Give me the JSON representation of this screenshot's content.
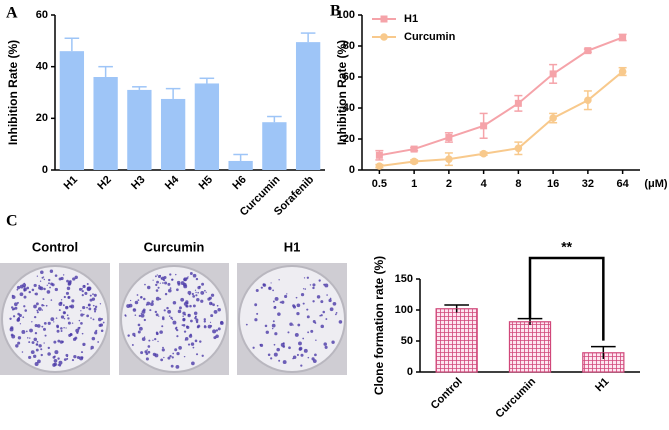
{
  "panel_labels": [
    "A",
    "B",
    "C"
  ],
  "photo_labels": [
    "Control",
    "Curcumin",
    "H1"
  ],
  "chart_data": [
    {
      "type": "bar",
      "y_label": "Inhibition Rate (%)",
      "categories": [
        "H1",
        "H2",
        "H3",
        "H4",
        "H5",
        "H6",
        "Curcumin",
        "Sorafenib"
      ],
      "values": [
        46,
        36,
        31,
        27.5,
        33.5,
        3.5,
        18.5,
        49.5
      ],
      "errors": [
        5,
        4,
        1.2,
        4,
        2,
        2.5,
        2.2,
        3.5
      ],
      "error_bars": "upper",
      "color": "#9ec5f7",
      "ylim": [
        0,
        60
      ],
      "yticks": [
        0,
        20,
        40,
        60
      ]
    },
    {
      "type": "line",
      "y_label": "Inhibition Rate (%)",
      "x_label": "(μM)",
      "categories": [
        "0.5",
        "1",
        "2",
        "4",
        "8",
        "16",
        "32",
        "64"
      ],
      "series": [
        {
          "name": "H1",
          "color": "#f5a3a9",
          "marker": "square",
          "values": [
            9.5,
            13.5,
            21,
            28.5,
            43,
            62,
            77,
            85.5
          ],
          "errors": [
            3,
            1,
            3,
            8,
            5,
            6,
            1,
            2
          ]
        },
        {
          "name": "Curcumin",
          "color": "#f8c98c",
          "marker": "circle",
          "values": [
            2.5,
            5.5,
            7,
            10.5,
            14,
            33.5,
            45,
            63.5
          ],
          "errors": [
            1,
            1,
            4,
            1,
            4,
            3,
            6,
            2.5
          ]
        }
      ],
      "legend": "top-left",
      "ylim": [
        0,
        100
      ],
      "yticks": [
        0,
        20,
        40,
        60,
        80,
        100
      ]
    },
    {
      "type": "bar",
      "y_label": "Clone formation rate (%)",
      "categories": [
        "Control",
        "Curcumin",
        "H1"
      ],
      "values": [
        102,
        81,
        31
      ],
      "errors": [
        6,
        5,
        10
      ],
      "error_bars": "both",
      "color": "#d1477a",
      "hatch": "grid",
      "annotation": "**",
      "ylim": [
        0,
        150
      ],
      "yticks": [
        0,
        50,
        100,
        150
      ]
    }
  ]
}
